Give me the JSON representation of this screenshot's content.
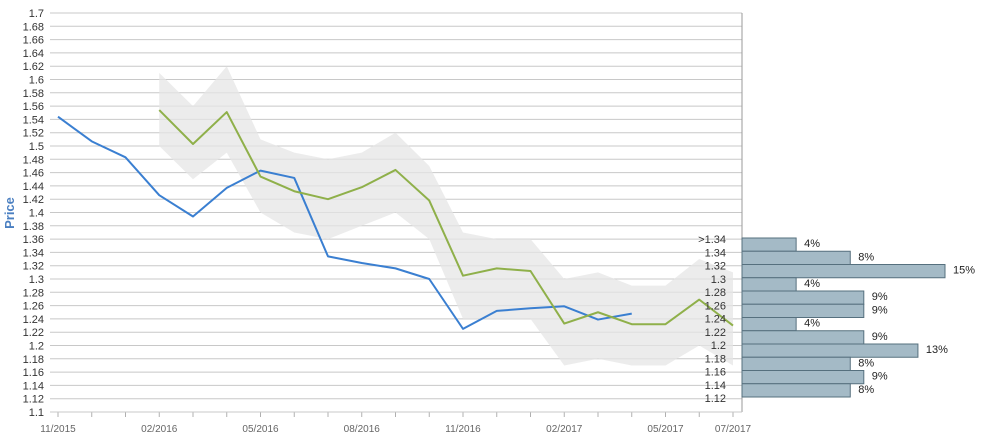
{
  "chart_data": {
    "type": "line",
    "ylabel": "Price",
    "ylim": [
      1.1,
      1.7
    ],
    "y_ticks": [
      "1.7",
      "1.68",
      "1.66",
      "1.64",
      "1.62",
      "1.6",
      "1.58",
      "1.56",
      "1.54",
      "1.52",
      "1.5",
      "1.48",
      "1.46",
      "1.44",
      "1.42",
      "1.4",
      "1.38",
      "1.36",
      "1.34",
      "1.32",
      "1.3",
      "1.28",
      "1.26",
      "1.24",
      "1.22",
      "1.2",
      "1.18",
      "1.16",
      "1.14",
      "1.12",
      "1.1"
    ],
    "x_ticks": [
      "11/2015",
      "02/2016",
      "05/2016",
      "08/2016",
      "11/2016",
      "02/2017",
      "05/2017",
      "07/2017"
    ],
    "grid": true,
    "colors": {
      "actual": "#3a7fd1",
      "forecast": "#8fb04a",
      "band": "#e6e6e6",
      "hist_fill": "#a4bac6",
      "hist_stroke": "#56707e"
    },
    "series": [
      {
        "role": "actual",
        "points": [
          [
            "2015-11-01",
            1.544
          ],
          [
            "2015-12-01",
            1.507
          ],
          [
            "2016-01-01",
            1.483
          ],
          [
            "2016-02-01",
            1.426
          ],
          [
            "2016-03-01",
            1.394
          ],
          [
            "2016-04-01",
            1.437
          ],
          [
            "2016-05-01",
            1.463
          ],
          [
            "2016-06-01",
            1.452
          ],
          [
            "2016-07-01",
            1.334
          ],
          [
            "2016-08-01",
            1.324
          ],
          [
            "2016-09-01",
            1.316
          ],
          [
            "2016-10-01",
            1.3
          ],
          [
            "2016-11-01",
            1.225
          ],
          [
            "2016-12-01",
            1.252
          ],
          [
            "2017-01-01",
            1.256
          ],
          [
            "2017-02-01",
            1.259
          ],
          [
            "2017-03-01",
            1.239
          ],
          [
            "2017-04-01",
            1.248
          ]
        ]
      },
      {
        "role": "forecast",
        "points": [
          [
            "2016-02-01",
            1.554
          ],
          [
            "2016-03-01",
            1.503
          ],
          [
            "2016-04-01",
            1.551
          ],
          [
            "2016-05-01",
            1.454
          ],
          [
            "2016-06-01",
            1.432
          ],
          [
            "2016-07-01",
            1.42
          ],
          [
            "2016-08-01",
            1.438
          ],
          [
            "2016-09-01",
            1.464
          ],
          [
            "2016-10-01",
            1.418
          ],
          [
            "2016-11-01",
            1.305
          ],
          [
            "2016-12-01",
            1.316
          ],
          [
            "2017-01-01",
            1.312
          ],
          [
            "2017-02-01",
            1.233
          ],
          [
            "2017-03-01",
            1.25
          ],
          [
            "2017-04-01",
            1.232
          ],
          [
            "2017-05-01",
            1.232
          ],
          [
            "2017-06-01",
            1.269
          ],
          [
            "2017-07-01",
            1.23
          ]
        ]
      }
    ],
    "band": {
      "dates": [
        "2016-02-01",
        "2016-03-01",
        "2016-04-01",
        "2016-05-01",
        "2016-06-01",
        "2016-07-01",
        "2016-08-01",
        "2016-09-01",
        "2016-10-01",
        "2016-11-01",
        "2016-12-01",
        "2017-01-01",
        "2017-02-01",
        "2017-03-01",
        "2017-04-01",
        "2017-05-01",
        "2017-06-01",
        "2017-07-01"
      ],
      "upper": [
        1.61,
        1.56,
        1.62,
        1.51,
        1.49,
        1.48,
        1.49,
        1.52,
        1.47,
        1.37,
        1.36,
        1.36,
        1.3,
        1.31,
        1.29,
        1.29,
        1.33,
        1.31
      ],
      "lower": [
        1.5,
        1.45,
        1.49,
        1.4,
        1.37,
        1.36,
        1.38,
        1.4,
        1.36,
        1.24,
        1.24,
        1.24,
        1.17,
        1.18,
        1.17,
        1.17,
        1.2,
        1.17
      ]
    },
    "histogram": [
      {
        "label": ">1.34",
        "pct": "4%",
        "value": 4
      },
      {
        "label": "1.34",
        "pct": "8%",
        "value": 8
      },
      {
        "label": "1.32",
        "pct": "15%",
        "value": 15
      },
      {
        "label": "1.3",
        "pct": "4%",
        "value": 4
      },
      {
        "label": "1.28",
        "pct": "9%",
        "value": 9
      },
      {
        "label": "1.26",
        "pct": "9%",
        "value": 9
      },
      {
        "label": "1.24",
        "pct": "4%",
        "value": 4
      },
      {
        "label": "1.22",
        "pct": "9%",
        "value": 9
      },
      {
        "label": "1.2",
        "pct": "13%",
        "value": 13
      },
      {
        "label": "1.18",
        "pct": "8%",
        "value": 8
      },
      {
        "label": "1.16",
        "pct": "9%",
        "value": 9
      },
      {
        "label": "1.14",
        "pct": "8%",
        "value": 8
      },
      {
        "label": "1.12",
        "pct": "",
        "value": 0
      }
    ]
  }
}
